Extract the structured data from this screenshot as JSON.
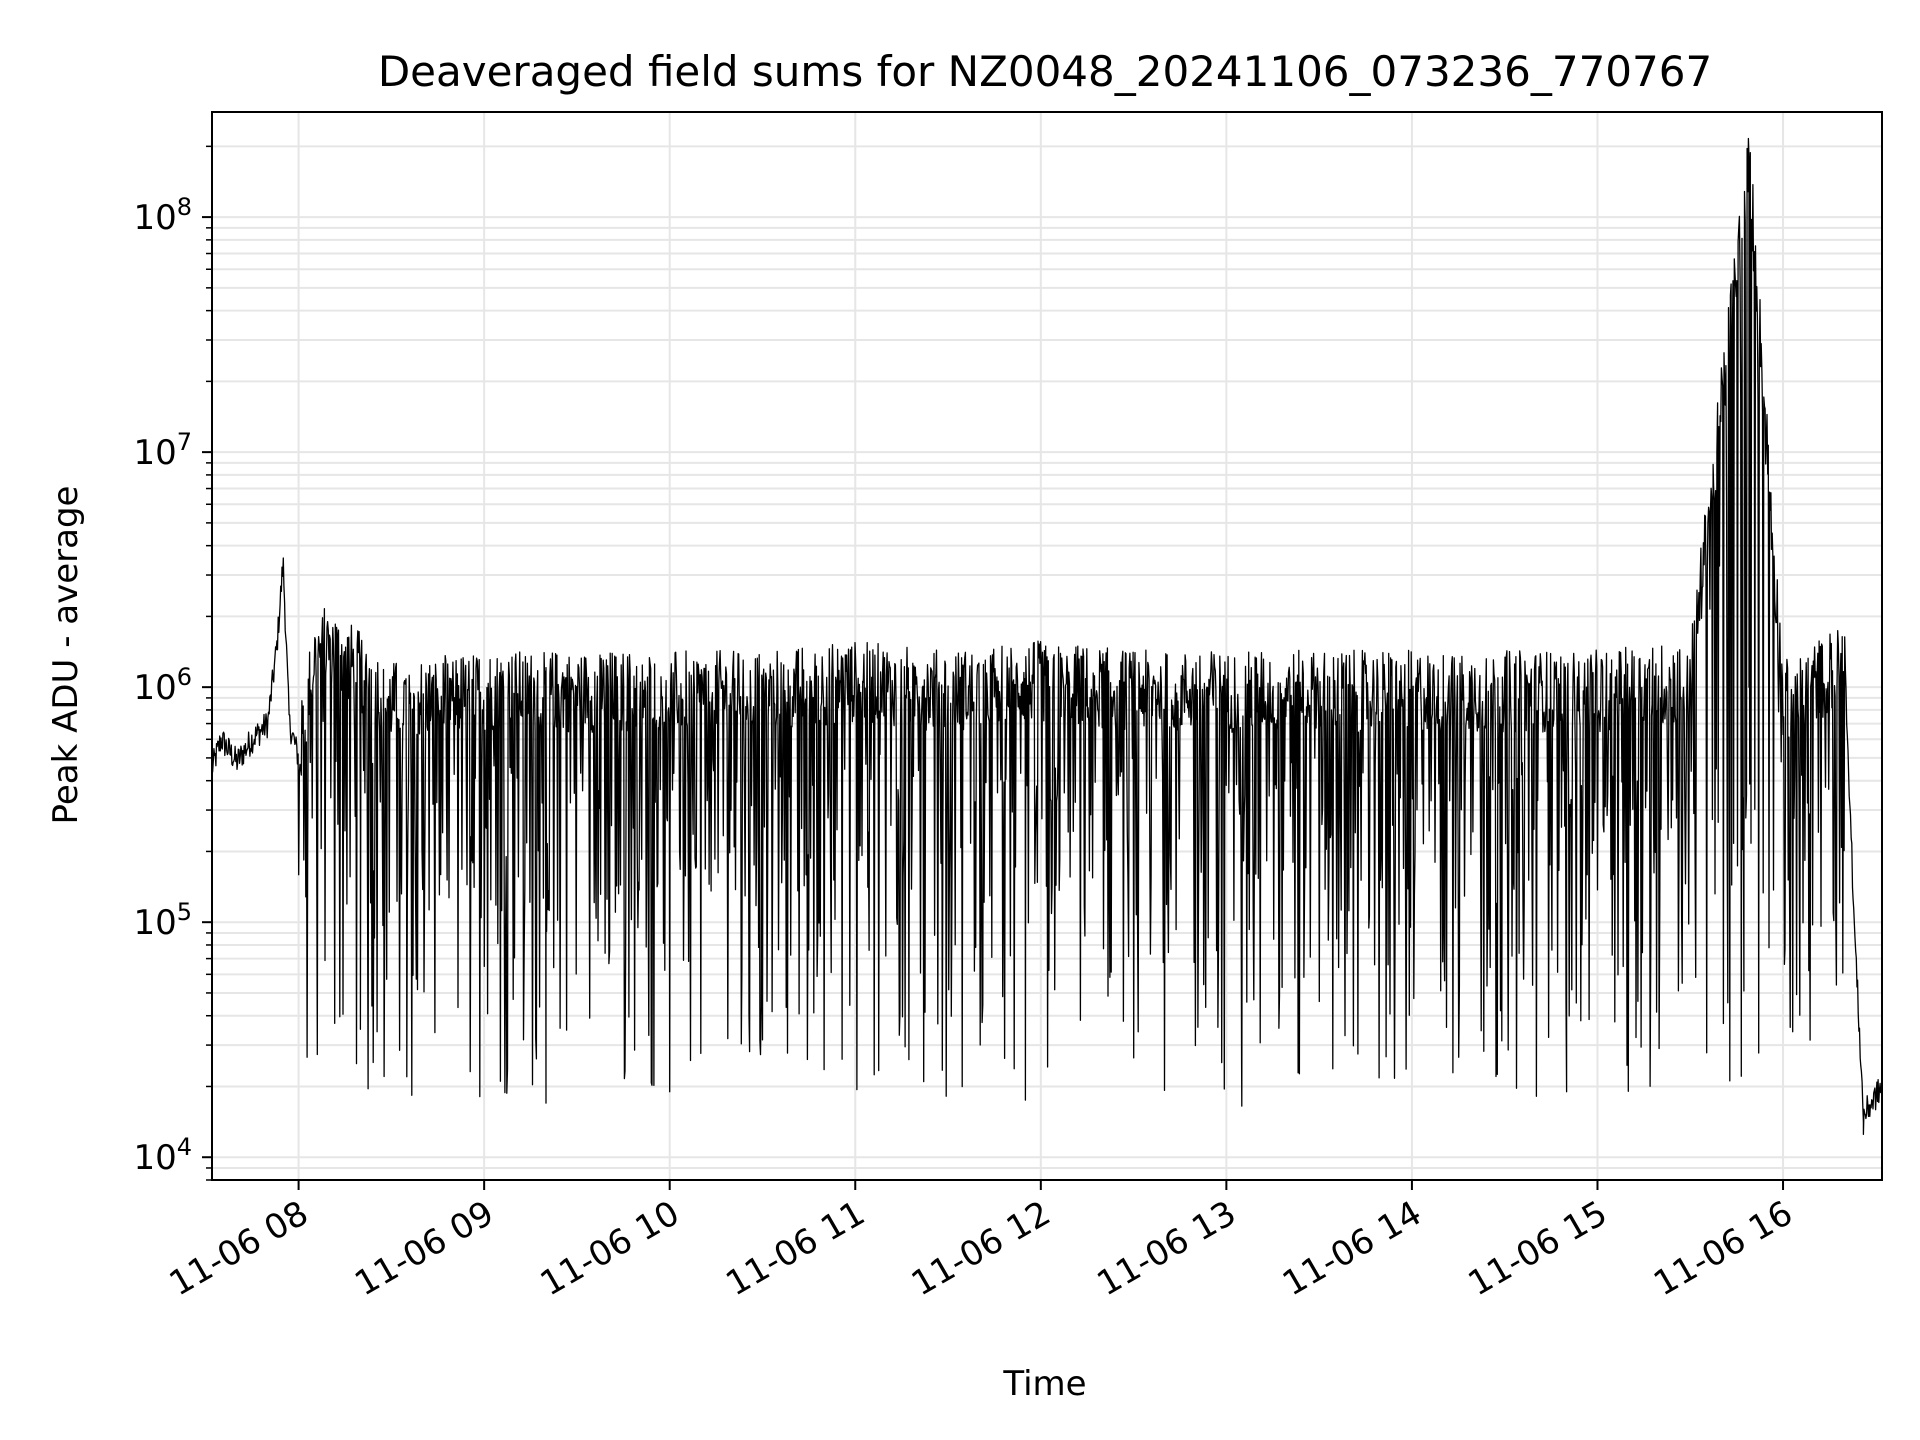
{
  "chart_data": {
    "type": "line",
    "title": "Deaveraged field sums for NZ0048_20241106_073236_770767",
    "xlabel": "Time",
    "ylabel": "Peak ADU - average",
    "yscale": "log",
    "ylim": [
      8000,
      280000000
    ],
    "xlim": [
      "2024-11-06 07:32",
      "2024-11-06 16:32"
    ],
    "grid": true,
    "line_color": "#000000",
    "grid_color": "#e6e6e6",
    "x_ticks": [
      "11-06 08",
      "11-06 09",
      "11-06 10",
      "11-06 11",
      "11-06 12",
      "11-06 13",
      "11-06 14",
      "11-06 15",
      "11-06 16"
    ],
    "x_tick_times": [
      "2024-11-06 08:00",
      "2024-11-06 09:00",
      "2024-11-06 10:00",
      "2024-11-06 11:00",
      "2024-11-06 12:00",
      "2024-11-06 13:00",
      "2024-11-06 14:00",
      "2024-11-06 15:00",
      "2024-11-06 16:00"
    ],
    "y_ticks": [
      {
        "base": "10",
        "exp": "4",
        "value": 10000
      },
      {
        "base": "10",
        "exp": "5",
        "value": 100000
      },
      {
        "base": "10",
        "exp": "6",
        "value": 1000000
      },
      {
        "base": "10",
        "exp": "7",
        "value": 10000000
      },
      {
        "base": "10",
        "exp": "8",
        "value": 100000000
      }
    ],
    "series": [
      {
        "x": [
          "2024-11-06 07:32",
          "2024-11-06 07:35",
          "2024-11-06 07:40",
          "2024-11-06 07:45",
          "2024-11-06 07:50",
          "2024-11-06 07:53",
          "2024-11-06 07:55",
          "2024-11-06 07:57",
          "2024-11-06 08:00",
          "2024-11-06 08:05",
          "2024-11-06 08:10",
          "2024-11-06 08:20",
          "2024-11-06 08:30",
          "2024-11-06 09:00",
          "2024-11-06 09:30",
          "2024-11-06 10:00",
          "2024-11-06 10:30",
          "2024-11-06 11:00",
          "2024-11-06 11:30",
          "2024-11-06 12:00",
          "2024-11-06 12:30",
          "2024-11-06 13:00",
          "2024-11-06 13:30",
          "2024-11-06 14:00",
          "2024-11-06 14:30",
          "2024-11-06 15:00",
          "2024-11-06 15:30",
          "2024-11-06 15:49",
          "2024-11-06 16:00",
          "2024-11-06 16:15",
          "2024-11-06 16:20",
          "2024-11-06 16:23",
          "2024-11-06 16:26",
          "2024-11-06 16:32"
        ],
        "y": [
          450000,
          600000,
          480000,
          600000,
          700000,
          1500000,
          3400000,
          700000,
          500000,
          1400000,
          1600000,
          1200000,
          900000,
          1000000,
          1000000,
          1000000,
          1000000,
          1100000,
          1000000,
          1100000,
          1000000,
          1000000,
          1000000,
          1000000,
          1000000,
          1000000,
          1100000,
          180000000,
          900000,
          1200000,
          1300000,
          100000,
          15000,
          20000
        ],
        "min_dips": [
          {
            "x": "2024-11-06 08:20",
            "y": 35000
          },
          {
            "x": "2024-11-06 08:35",
            "y": 22000
          },
          {
            "x": "2024-11-06 09:20",
            "y": 17000
          },
          {
            "x": "2024-11-06 10:00",
            "y": 19000
          },
          {
            "x": "2024-11-06 11:55",
            "y": 17500
          },
          {
            "x": "2024-11-06 13:05",
            "y": 16500
          },
          {
            "x": "2024-11-06 14:50",
            "y": 19000
          },
          {
            "x": "2024-11-06 16:26",
            "y": 12500
          }
        ]
      }
    ]
  }
}
